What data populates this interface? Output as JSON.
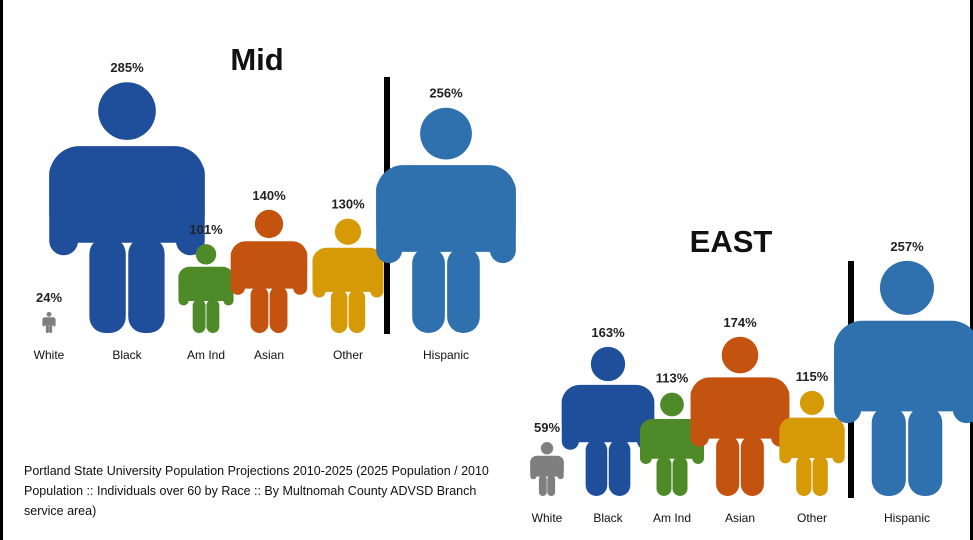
{
  "chart_data": [
    {
      "type": "pictograph",
      "title": "Mid",
      "categories": [
        "White",
        "Black",
        "Am Ind",
        "Asian",
        "Other",
        "Hispanic"
      ],
      "values": [
        24,
        285,
        101,
        140,
        130,
        256
      ],
      "value_labels": [
        "24%",
        "285%",
        "101%",
        "140%",
        "130%",
        "256%"
      ],
      "colors": [
        "#7f7f7f",
        "#1f4e9b",
        "#4e8a28",
        "#c45310",
        "#d59a06",
        "#2f71ae"
      ],
      "separator_before": "Hispanic"
    },
    {
      "type": "pictograph",
      "title": "EAST",
      "categories": [
        "White",
        "Black",
        "Am Ind",
        "Asian",
        "Other",
        "Hispanic"
      ],
      "values": [
        59,
        163,
        113,
        174,
        115,
        257
      ],
      "value_labels": [
        "59%",
        "163%",
        "113%",
        "174%",
        "115%",
        "257%"
      ],
      "colors": [
        "#7f7f7f",
        "#1f4e9b",
        "#4e8a28",
        "#c45310",
        "#d59a06",
        "#2f71ae"
      ],
      "separator_before": "Hispanic"
    }
  ],
  "source_note": "Portland State University Population Projections 2010-2025 (2025 Population / 2010 Population :: Individuals over 60 by Race :: By Multnomah County ADVSD Branch service area)"
}
